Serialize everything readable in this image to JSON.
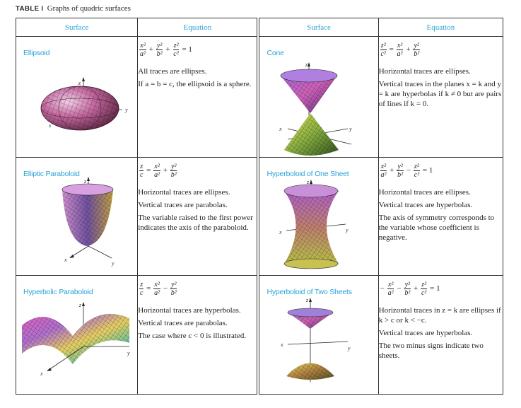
{
  "caption": {
    "label": "TABLE",
    "number": "I",
    "title": "Graphs of quadric surfaces"
  },
  "headers": {
    "surface": "Surface",
    "equation": "Equation"
  },
  "axis_labels": {
    "x": "x",
    "y": "y",
    "z": "z"
  },
  "surfaces": [
    {
      "name": "Ellipsoid",
      "formula": {
        "t1n": "x²",
        "t1d": "a²",
        "op1": "+",
        "t2n": "y²",
        "t2d": "b²",
        "op2": "+",
        "t3n": "z²",
        "t3d": "c²",
        "rhs": "= 1"
      },
      "notes": [
        "All traces are ellipses.",
        "If a = b = c, the ellipsoid is a sphere."
      ]
    },
    {
      "name": "Cone",
      "formula": {
        "t1n": "z²",
        "t1d": "c²",
        "op1": "=",
        "t2n": "x²",
        "t2d": "a²",
        "op2": "+",
        "t3n": "y²",
        "t3d": "b²",
        "rhs": ""
      },
      "notes": [
        "Horizontal traces are ellipses.",
        "Vertical traces in the planes x = k and y = k are hyperbolas if k ≠ 0 but are pairs of lines if k = 0."
      ]
    },
    {
      "name": "Elliptic Paraboloid",
      "formula": {
        "t1n": "z",
        "t1d": "c",
        "op1": "=",
        "t2n": "x²",
        "t2d": "a²",
        "op2": "+",
        "t3n": "y²",
        "t3d": "b²",
        "rhs": ""
      },
      "notes": [
        "Horizontal traces are ellipses.",
        "Vertical traces are parabolas.",
        "The variable raised to the first power indicates the axis of the paraboloid."
      ]
    },
    {
      "name": "Hyperboloid of One Sheet",
      "formula": {
        "t1n": "x²",
        "t1d": "a²",
        "op1": "+",
        "t2n": "y²",
        "t2d": "b²",
        "op2": "−",
        "t3n": "z²",
        "t3d": "c²",
        "rhs": "= 1"
      },
      "notes": [
        "Horizontal traces are ellipses.",
        "Vertical traces are hyperbolas.",
        "The axis of symmetry corresponds to the variable whose coefficient is negative."
      ]
    },
    {
      "name": "Hyperbolic Paraboloid",
      "formula": {
        "t1n": "z",
        "t1d": "c",
        "op1": "=",
        "t2n": "x²",
        "t2d": "a²",
        "op2": "−",
        "t3n": "y²",
        "t3d": "b²",
        "rhs": ""
      },
      "notes": [
        "Horizontal traces are hyperbolas.",
        "Vertical traces are parabolas.",
        "The case where c < 0 is illustrated."
      ]
    },
    {
      "name": "Hyperboloid of Two Sheets",
      "formula": {
        "lead": "−",
        "t1n": "x²",
        "t1d": "a²",
        "op1": "−",
        "t2n": "y²",
        "t2d": "b²",
        "op2": "+",
        "t3n": "z²",
        "t3d": "c²",
        "rhs": "= 1"
      },
      "notes": [
        "Horizontal traces in z = k are ellipses if k > c or k < −c.",
        "Vertical traces are hyperbolas.",
        "The two minus signs indicate two sheets."
      ]
    }
  ]
}
